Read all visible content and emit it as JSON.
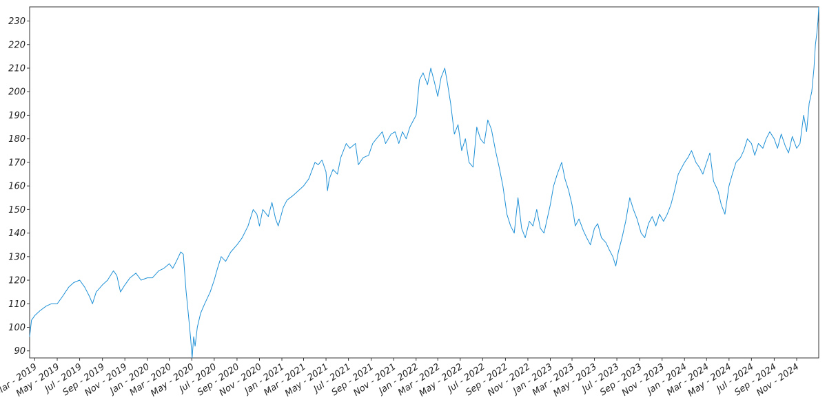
{
  "chart_data": {
    "type": "line",
    "title": "",
    "xlabel": "",
    "ylabel": "",
    "grid": false,
    "legend": "none",
    "xlim": [
      "2019-02-15",
      "2024-12-31"
    ],
    "ylim": [
      87,
      236
    ],
    "y_ticks": [
      90,
      100,
      110,
      120,
      130,
      140,
      150,
      160,
      170,
      180,
      190,
      200,
      210,
      220,
      230
    ],
    "x_tick_labels": [
      "Mar - 2019",
      "May - 2019",
      "Jul - 2019",
      "Sep - 2019",
      "Nov - 2019",
      "Jan - 2020",
      "Mar - 2020",
      "May - 2020",
      "Jul - 2020",
      "Sep - 2020",
      "Nov - 2020",
      "Jan - 2021",
      "Mar - 2021",
      "May - 2021",
      "Jul - 2021",
      "Sep - 2021",
      "Nov - 2021",
      "Jan - 2022",
      "Mar - 2022",
      "May - 2022",
      "Jul - 2022",
      "Sep - 2022",
      "Nov - 2022",
      "Jan - 2023",
      "Mar - 2023",
      "May - 2023",
      "Jul - 2023",
      "Sep - 2023",
      "Nov - 2023",
      "Jan - 2024",
      "Mar - 2024",
      "May - 2024",
      "Jul - 2024",
      "Sep - 2024",
      "Nov - 2024"
    ],
    "x_tick_dates": [
      "2019-03-01",
      "2019-05-01",
      "2019-07-01",
      "2019-09-01",
      "2019-11-01",
      "2020-01-01",
      "2020-03-01",
      "2020-05-01",
      "2020-07-01",
      "2020-09-01",
      "2020-11-01",
      "2021-01-01",
      "2021-03-01",
      "2021-05-01",
      "2021-07-01",
      "2021-09-01",
      "2021-11-01",
      "2022-01-01",
      "2022-03-01",
      "2022-05-01",
      "2022-07-01",
      "2022-09-01",
      "2022-11-01",
      "2023-01-01",
      "2023-03-01",
      "2023-05-01",
      "2023-07-01",
      "2023-09-01",
      "2023-11-01",
      "2024-01-01",
      "2024-03-01",
      "2024-05-01",
      "2024-07-01",
      "2024-09-01",
      "2024-11-01"
    ],
    "series": [
      {
        "color": "#1e90d6",
        "points": [
          [
            "2019-02-15",
            96
          ],
          [
            "2019-02-20",
            103
          ],
          [
            "2019-03-01",
            105
          ],
          [
            "2019-03-15",
            107
          ],
          [
            "2019-04-01",
            109
          ],
          [
            "2019-04-15",
            110
          ],
          [
            "2019-05-01",
            110
          ],
          [
            "2019-05-15",
            113
          ],
          [
            "2019-06-01",
            117
          ],
          [
            "2019-06-15",
            119
          ],
          [
            "2019-07-01",
            120
          ],
          [
            "2019-07-15",
            117
          ],
          [
            "2019-07-28",
            113
          ],
          [
            "2019-08-05",
            110
          ],
          [
            "2019-08-15",
            115
          ],
          [
            "2019-09-01",
            118
          ],
          [
            "2019-09-15",
            120
          ],
          [
            "2019-10-01",
            124
          ],
          [
            "2019-10-10",
            122
          ],
          [
            "2019-10-20",
            115
          ],
          [
            "2019-11-01",
            118
          ],
          [
            "2019-11-15",
            121
          ],
          [
            "2019-12-01",
            123
          ],
          [
            "2019-12-15",
            120
          ],
          [
            "2020-01-01",
            121
          ],
          [
            "2020-01-15",
            121
          ],
          [
            "2020-02-01",
            124
          ],
          [
            "2020-02-15",
            125
          ],
          [
            "2020-03-01",
            127
          ],
          [
            "2020-03-10",
            125
          ],
          [
            "2020-03-20",
            128
          ],
          [
            "2020-04-01",
            132
          ],
          [
            "2020-04-08",
            131
          ],
          [
            "2020-04-15",
            116
          ],
          [
            "2020-04-22",
            105
          ],
          [
            "2020-04-28",
            95
          ],
          [
            "2020-05-02",
            87
          ],
          [
            "2020-05-06",
            96
          ],
          [
            "2020-05-10",
            92
          ],
          [
            "2020-05-16",
            100
          ],
          [
            "2020-05-25",
            106
          ],
          [
            "2020-06-05",
            110
          ],
          [
            "2020-06-20",
            115
          ],
          [
            "2020-07-01",
            120
          ],
          [
            "2020-07-10",
            125
          ],
          [
            "2020-07-20",
            130
          ],
          [
            "2020-08-01",
            128
          ],
          [
            "2020-08-15",
            132
          ],
          [
            "2020-09-01",
            135
          ],
          [
            "2020-09-15",
            138
          ],
          [
            "2020-10-01",
            143
          ],
          [
            "2020-10-15",
            150
          ],
          [
            "2020-10-25",
            148
          ],
          [
            "2020-11-01",
            143
          ],
          [
            "2020-11-10",
            150
          ],
          [
            "2020-11-25",
            147
          ],
          [
            "2020-12-05",
            153
          ],
          [
            "2020-12-15",
            146
          ],
          [
            "2020-12-22",
            143
          ],
          [
            "2021-01-05",
            151
          ],
          [
            "2021-01-15",
            154
          ],
          [
            "2021-02-01",
            156
          ],
          [
            "2021-02-15",
            158
          ],
          [
            "2021-03-01",
            160
          ],
          [
            "2021-03-15",
            163
          ],
          [
            "2021-04-01",
            170
          ],
          [
            "2021-04-10",
            169
          ],
          [
            "2021-04-20",
            171
          ],
          [
            "2021-05-01",
            166
          ],
          [
            "2021-05-05",
            158
          ],
          [
            "2021-05-10",
            163
          ],
          [
            "2021-05-20",
            167
          ],
          [
            "2021-06-01",
            165
          ],
          [
            "2021-06-10",
            172
          ],
          [
            "2021-06-25",
            178
          ],
          [
            "2021-07-05",
            176
          ],
          [
            "2021-07-20",
            178
          ],
          [
            "2021-07-28",
            169
          ],
          [
            "2021-08-10",
            172
          ],
          [
            "2021-08-25",
            173
          ],
          [
            "2021-09-05",
            178
          ],
          [
            "2021-09-15",
            180
          ],
          [
            "2021-10-01",
            183
          ],
          [
            "2021-10-10",
            178
          ],
          [
            "2021-10-25",
            182
          ],
          [
            "2021-11-05",
            183
          ],
          [
            "2021-11-15",
            178
          ],
          [
            "2021-11-25",
            183
          ],
          [
            "2021-12-05",
            180
          ],
          [
            "2021-12-15",
            185
          ],
          [
            "2022-01-01",
            190
          ],
          [
            "2022-01-10",
            205
          ],
          [
            "2022-01-20",
            208
          ],
          [
            "2022-02-01",
            203
          ],
          [
            "2022-02-10",
            210
          ],
          [
            "2022-02-20",
            204
          ],
          [
            "2022-03-01",
            198
          ],
          [
            "2022-03-10",
            206
          ],
          [
            "2022-03-20",
            210
          ],
          [
            "2022-03-28",
            203
          ],
          [
            "2022-04-05",
            195
          ],
          [
            "2022-04-15",
            182
          ],
          [
            "2022-04-25",
            186
          ],
          [
            "2022-05-05",
            175
          ],
          [
            "2022-05-15",
            180
          ],
          [
            "2022-05-25",
            170
          ],
          [
            "2022-06-05",
            168
          ],
          [
            "2022-06-15",
            185
          ],
          [
            "2022-06-25",
            180
          ],
          [
            "2022-07-05",
            178
          ],
          [
            "2022-07-15",
            188
          ],
          [
            "2022-07-25",
            184
          ],
          [
            "2022-08-05",
            175
          ],
          [
            "2022-08-15",
            168
          ],
          [
            "2022-08-25",
            160
          ],
          [
            "2022-09-05",
            148
          ],
          [
            "2022-09-15",
            143
          ],
          [
            "2022-09-25",
            140
          ],
          [
            "2022-10-05",
            155
          ],
          [
            "2022-10-15",
            142
          ],
          [
            "2022-10-25",
            138
          ],
          [
            "2022-11-05",
            145
          ],
          [
            "2022-11-15",
            143
          ],
          [
            "2022-11-25",
            150
          ],
          [
            "2022-12-05",
            142
          ],
          [
            "2022-12-15",
            140
          ],
          [
            "2023-01-01",
            152
          ],
          [
            "2023-01-10",
            160
          ],
          [
            "2023-01-20",
            165
          ],
          [
            "2023-02-01",
            170
          ],
          [
            "2023-02-10",
            163
          ],
          [
            "2023-02-20",
            158
          ],
          [
            "2023-03-01",
            152
          ],
          [
            "2023-03-10",
            143
          ],
          [
            "2023-03-20",
            146
          ],
          [
            "2023-04-01",
            141
          ],
          [
            "2023-04-10",
            138
          ],
          [
            "2023-04-20",
            135
          ],
          [
            "2023-05-01",
            142
          ],
          [
            "2023-05-10",
            144
          ],
          [
            "2023-05-20",
            138
          ],
          [
            "2023-06-01",
            136
          ],
          [
            "2023-06-10",
            133
          ],
          [
            "2023-06-20",
            130
          ],
          [
            "2023-06-28",
            126
          ],
          [
            "2023-07-05",
            132
          ],
          [
            "2023-07-15",
            138
          ],
          [
            "2023-07-25",
            145
          ],
          [
            "2023-08-05",
            155
          ],
          [
            "2023-08-15",
            150
          ],
          [
            "2023-08-25",
            146
          ],
          [
            "2023-09-05",
            140
          ],
          [
            "2023-09-15",
            138
          ],
          [
            "2023-09-25",
            144
          ],
          [
            "2023-10-05",
            147
          ],
          [
            "2023-10-15",
            143
          ],
          [
            "2023-10-25",
            148
          ],
          [
            "2023-11-05",
            145
          ],
          [
            "2023-11-15",
            148
          ],
          [
            "2023-11-25",
            152
          ],
          [
            "2023-12-05",
            158
          ],
          [
            "2023-12-15",
            165
          ],
          [
            "2024-01-01",
            170
          ],
          [
            "2024-01-10",
            172
          ],
          [
            "2024-01-20",
            175
          ],
          [
            "2024-02-01",
            170
          ],
          [
            "2024-02-10",
            168
          ],
          [
            "2024-02-20",
            165
          ],
          [
            "2024-03-01",
            170
          ],
          [
            "2024-03-10",
            174
          ],
          [
            "2024-03-20",
            162
          ],
          [
            "2024-04-01",
            158
          ],
          [
            "2024-04-10",
            152
          ],
          [
            "2024-04-20",
            148
          ],
          [
            "2024-05-01",
            160
          ],
          [
            "2024-05-10",
            165
          ],
          [
            "2024-05-20",
            170
          ],
          [
            "2024-06-01",
            172
          ],
          [
            "2024-06-10",
            175
          ],
          [
            "2024-06-20",
            180
          ],
          [
            "2024-07-01",
            178
          ],
          [
            "2024-07-10",
            173
          ],
          [
            "2024-07-20",
            178
          ],
          [
            "2024-08-01",
            176
          ],
          [
            "2024-08-10",
            180
          ],
          [
            "2024-08-20",
            183
          ],
          [
            "2024-09-01",
            180
          ],
          [
            "2024-09-10",
            176
          ],
          [
            "2024-09-20",
            182
          ],
          [
            "2024-10-01",
            177
          ],
          [
            "2024-10-10",
            174
          ],
          [
            "2024-10-20",
            181
          ],
          [
            "2024-11-01",
            176
          ],
          [
            "2024-11-10",
            178
          ],
          [
            "2024-11-20",
            190
          ],
          [
            "2024-11-28",
            183
          ],
          [
            "2024-12-05",
            195
          ],
          [
            "2024-12-12",
            200
          ],
          [
            "2024-12-18",
            210
          ],
          [
            "2024-12-22",
            220
          ],
          [
            "2024-12-26",
            225
          ],
          [
            "2024-12-29",
            230
          ],
          [
            "2024-12-31",
            236
          ]
        ]
      }
    ]
  }
}
